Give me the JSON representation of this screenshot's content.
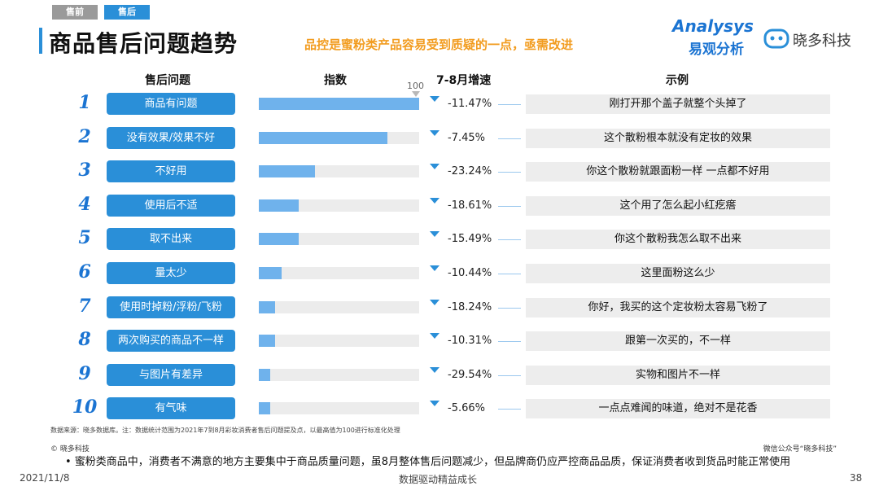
{
  "tabs": {
    "pre": "售前",
    "post": "售后"
  },
  "page_title": "商品售后问题趋势",
  "subtitle": "品控是蜜粉类产品容易受到质疑的一点，亟需改进",
  "logos": {
    "a_en": "Analysys",
    "a_cn": "易观分析",
    "b": "晓多科技"
  },
  "chart_data": {
    "type": "bar",
    "columns": {
      "issue": "售后问题",
      "index": "指数",
      "growth": "7-8月增速",
      "example": "示例"
    },
    "max_label": "100",
    "ylim": [
      0,
      100
    ],
    "ranks": [
      "1",
      "2",
      "3",
      "4",
      "5",
      "6",
      "7",
      "8",
      "9",
      "10"
    ],
    "categories": [
      "商品有问题",
      "没有效果/效果不好",
      "不好用",
      "使用后不适",
      "取不出来",
      "量太少",
      "使用时掉粉/浮粉/飞粉",
      "两次购买的商品不一样",
      "与图片有差异",
      "有气味"
    ],
    "values": [
      100,
      80,
      35,
      25,
      25,
      14,
      10,
      10,
      7,
      7
    ],
    "growth": [
      "-11.47%",
      "-7.45%",
      "-23.24%",
      "-18.61%",
      "-15.49%",
      "-10.44%",
      "-18.24%",
      "-10.31%",
      "-29.54%",
      "-5.66%"
    ],
    "examples": [
      "刚打开那个盖子就整个头掉了",
      "这个散粉根本就没有定妆的效果",
      "你这个散粉就跟面粉一样 一点都不好用",
      "这个用了怎么起小红疙瘩",
      "你这个散粉我怎么取不出来",
      "这里面粉这么少",
      "你好，我买的这个定妆粉太容易飞粉了",
      "跟第一次买的，不一样",
      "实物和图片不一样",
      "一点点难闻的味道，绝对不是花香"
    ]
  },
  "source": "数据来源：晓多数据库。注：数据统计范围为2021年7到8月彩妆消费者售后问题提及点，以最高值为100进行标准化处理",
  "copyright_left": "© 晓多科技",
  "copyright_right": "微信公众号“晓多科技”",
  "bullet": "•  蜜粉类商品中，消费者不满意的地方主要集中于商品质量问题，虽8月整体售后问题减少，但品牌商仍应严控商品品质，保证消费者收到货品时能正常使用",
  "footer": {
    "date": "2021/11/8",
    "center": "数据驱动精益成长",
    "page": "38"
  }
}
